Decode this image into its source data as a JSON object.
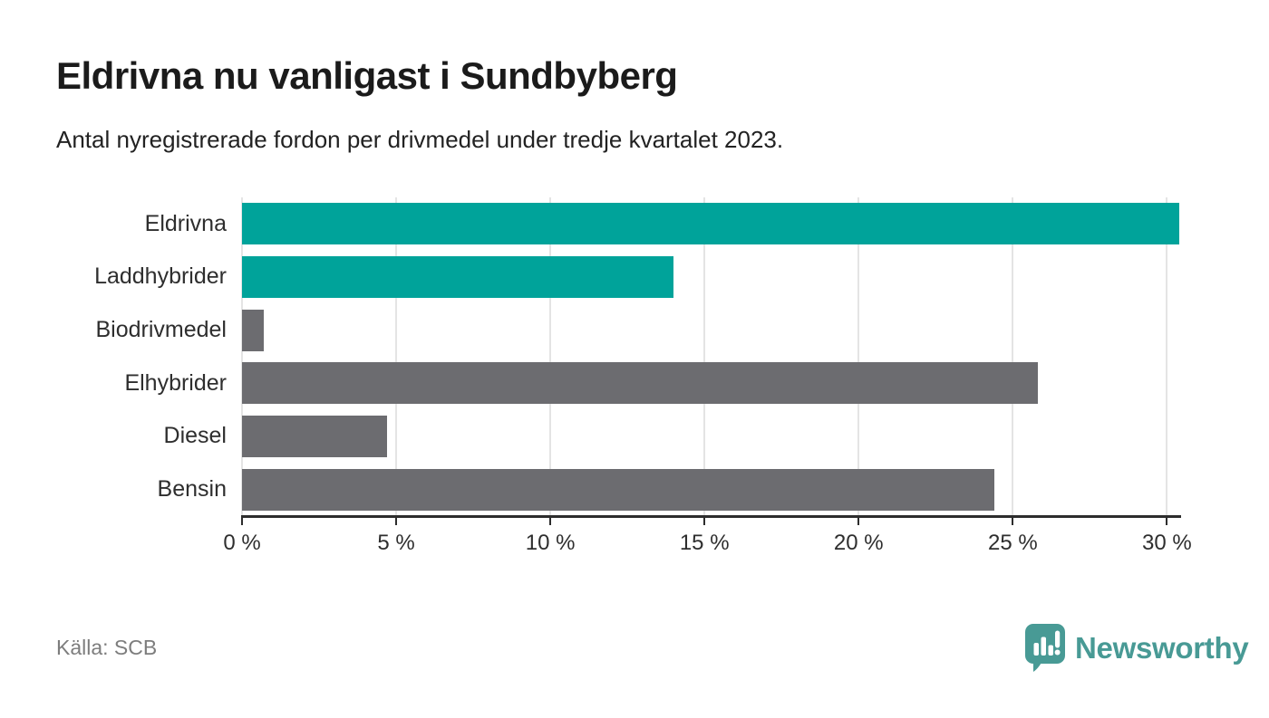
{
  "header": {
    "title": "Eldrivna nu vanligast i Sundbyberg",
    "subtitle": "Antal nyregistrerade fordon per drivmedel under tredje kvartalet 2023."
  },
  "chart_data": {
    "type": "bar",
    "orientation": "horizontal",
    "title": "Eldrivna nu vanligast i Sundbyberg",
    "subtitle": "Antal nyregistrerade fordon per drivmedel under tredje kvartalet 2023.",
    "categories": [
      "Eldrivna",
      "Laddhybrider",
      "Biodrivmedel",
      "Elhybrider",
      "Diesel",
      "Bensin"
    ],
    "values": [
      30.4,
      14.0,
      0.7,
      25.8,
      4.7,
      24.4
    ],
    "unit": "%",
    "xlim": [
      0,
      30.4
    ],
    "xticks": [
      0,
      5,
      10,
      15,
      20,
      25,
      30
    ],
    "xtick_labels": [
      "0 %",
      "5 %",
      "10 %",
      "15 %",
      "20 %",
      "25 %",
      "30 %"
    ],
    "grid": true,
    "legend": false,
    "bar_colors": [
      "#00a39a",
      "#00a39a",
      "#6c6c70",
      "#6c6c70",
      "#6c6c70",
      "#6c6c70"
    ],
    "highlight_color": "#00a39a",
    "default_color": "#6c6c70",
    "gridline_color": "#e4e4e4",
    "axis_color": "#2d2d2d"
  },
  "footer": {
    "source_label": "Källa: SCB",
    "brand": {
      "name": "Newsworthy",
      "color": "#489a95"
    }
  }
}
